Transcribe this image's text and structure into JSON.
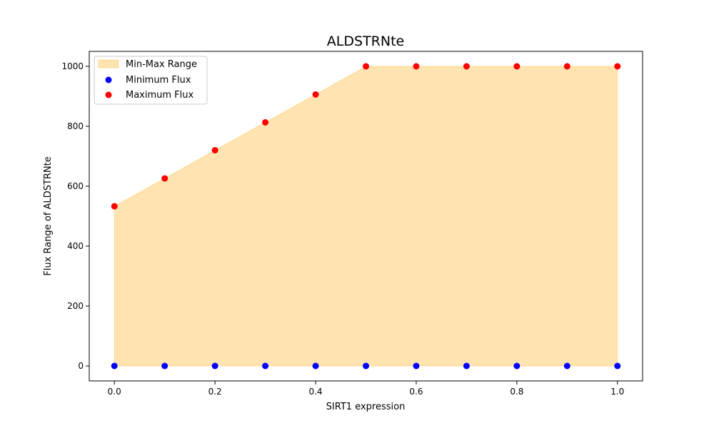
{
  "chart_data": {
    "type": "scatter",
    "title": "ALDSTRNte",
    "xlabel": "SIRT1 expression",
    "ylabel": "Flux Range of ALDSTRNte",
    "xlim": [
      -0.05,
      1.05
    ],
    "ylim": [
      -50,
      1050
    ],
    "xticks": [
      0.0,
      0.2,
      0.4,
      0.6,
      0.8,
      1.0
    ],
    "xtick_labels": [
      "0.0",
      "0.2",
      "0.4",
      "0.6",
      "0.8",
      "1.0"
    ],
    "yticks": [
      0,
      200,
      400,
      600,
      800,
      1000
    ],
    "ytick_labels": [
      "0",
      "200",
      "400",
      "600",
      "800",
      "1000"
    ],
    "grid": false,
    "legend_position": "top-left",
    "x": [
      0.0,
      0.1,
      0.2,
      0.3,
      0.4,
      0.5,
      0.6,
      0.7,
      0.8,
      0.9,
      1.0
    ],
    "series": [
      {
        "name": "Min-Max Range",
        "kind": "fill_between",
        "color": "#ffa500",
        "opacity": 0.3
      },
      {
        "name": "Minimum Flux",
        "kind": "scatter",
        "color": "#0000ff",
        "values": [
          0,
          0,
          0,
          0,
          0,
          0,
          0,
          0,
          0,
          0,
          0
        ]
      },
      {
        "name": "Maximum Flux",
        "kind": "scatter",
        "color": "#ff0000",
        "values": [
          533,
          626,
          720,
          813,
          906,
          1000,
          1000,
          1000,
          1000,
          1000,
          1000
        ]
      }
    ]
  }
}
